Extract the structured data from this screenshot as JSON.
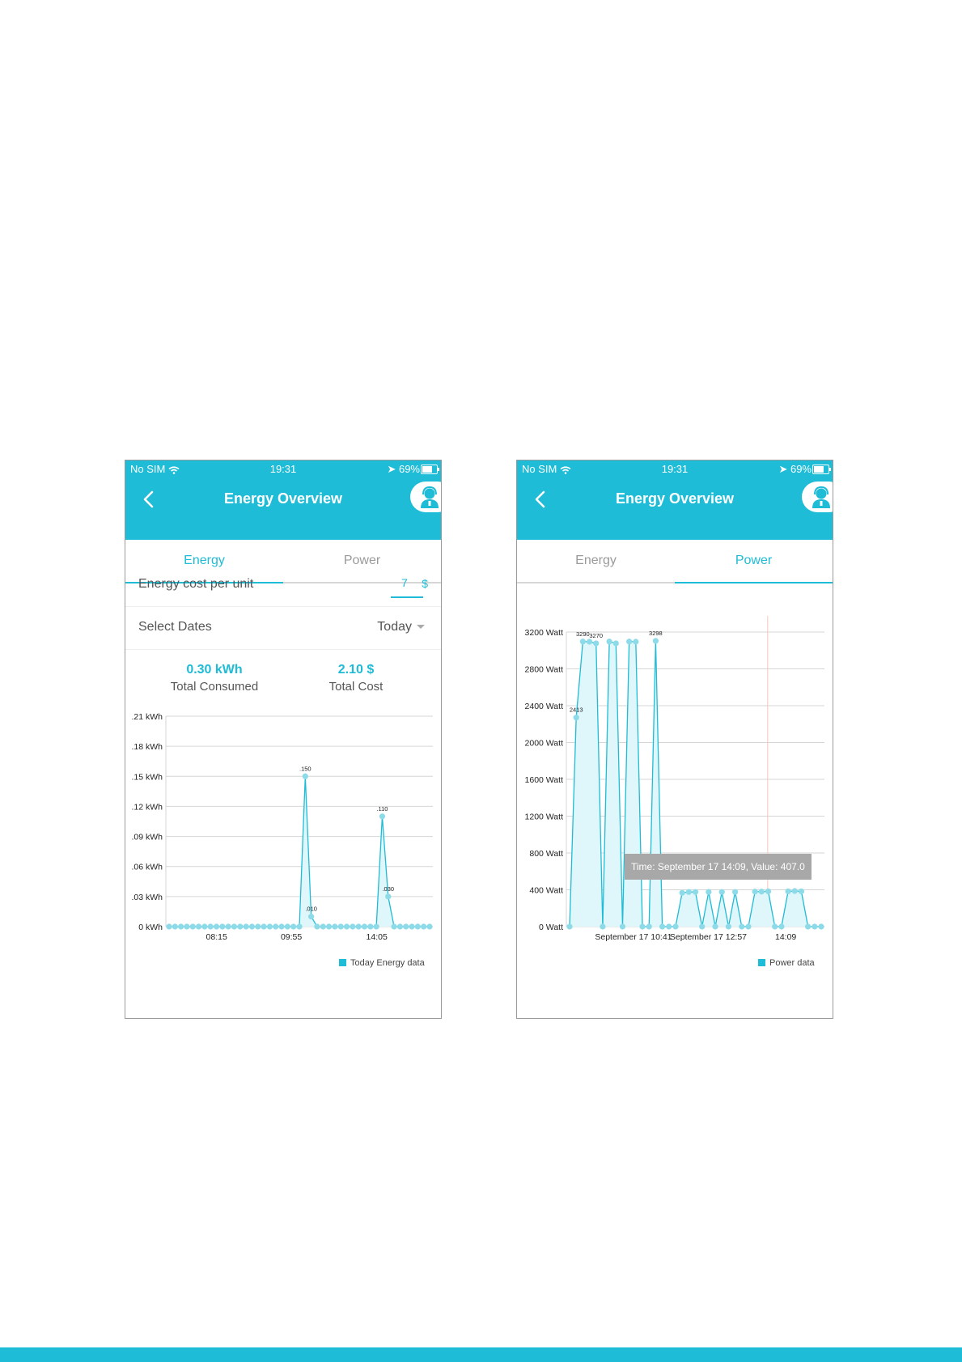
{
  "colors": {
    "accent": "#1ebcd6",
    "fill": "#dff6fb",
    "grid": "#d6d6d6",
    "tooltip_bg": "#a8a8a8"
  },
  "left": {
    "status": {
      "carrier": "No SIM",
      "time": "19:31",
      "battery": "69%"
    },
    "header": {
      "title": "Energy Overview",
      "back_icon": "chevron-left-icon",
      "support_icon": "support-agent-icon"
    },
    "tabs": [
      {
        "label": "Energy",
        "active": true
      },
      {
        "label": "Power",
        "active": false
      }
    ],
    "cost_row": {
      "label": "Energy cost per unit",
      "value": "7",
      "currency": "$"
    },
    "dates_row": {
      "label": "Select Dates",
      "value": "Today"
    },
    "summary": {
      "consumed_value": "0.30 kWh",
      "consumed_label": "Total Consumed",
      "cost_value": "2.10 $",
      "cost_label": "Total Cost"
    },
    "legend": "Today Energy data"
  },
  "right": {
    "status": {
      "carrier": "No SIM",
      "time": "19:31",
      "battery": "69%"
    },
    "header": {
      "title": "Energy Overview",
      "back_icon": "chevron-left-icon",
      "support_icon": "support-agent-icon"
    },
    "tabs": [
      {
        "label": "Energy",
        "active": false
      },
      {
        "label": "Power",
        "active": true
      }
    ],
    "tooltip": "Time: September 17 14:09, Value: 407.0",
    "legend": "Power data"
  },
  "chart_data": [
    {
      "type": "area",
      "ylabel": "",
      "ylim": [
        0,
        0.21
      ],
      "y_ticks": [
        ".21 kWh",
        ".18 kWh",
        ".15 kWh",
        ".12 kWh",
        ".09 kWh",
        ".06 kWh",
        ".03 kWh",
        "0 kWh"
      ],
      "x_tick_labels": [
        "08:15",
        "09:55",
        "14:05"
      ],
      "series": [
        {
          "name": "Today Energy data",
          "values": [
            0,
            0,
            0,
            0,
            0,
            0,
            0,
            0,
            0,
            0,
            0,
            0,
            0,
            0,
            0,
            0,
            0,
            0,
            0,
            0,
            0,
            0,
            0,
            0.15,
            0.01,
            0,
            0,
            0,
            0,
            0,
            0,
            0,
            0,
            0,
            0,
            0,
            0.11,
            0.03,
            0,
            0,
            0,
            0,
            0,
            0,
            0
          ],
          "labels": {
            "23": ".150",
            "24": ".010",
            "36": ".110",
            "37": ".030"
          }
        }
      ]
    },
    {
      "type": "area",
      "ylim": [
        0,
        3400
      ],
      "y_ticks": [
        "3200 Watt",
        "2800 Watt",
        "2400 Watt",
        "2000 Watt",
        "1600 Watt",
        "1200 Watt",
        "800 Watt",
        "400 Watt",
        "0 Watt"
      ],
      "x_tick_labels": [
        "September 17 10:41",
        "September 17 12:57",
        "14:09"
      ],
      "series": [
        {
          "name": "Power data",
          "values": [
            0,
            2413,
            3290,
            3288,
            3270,
            0,
            3290,
            3270,
            0,
            3290,
            3288,
            0,
            0,
            3298,
            0,
            0,
            0,
            390,
            400,
            400,
            0,
            401,
            0,
            400,
            0,
            400,
            0,
            0,
            404,
            404,
            407,
            0,
            0,
            407,
            411,
            407,
            0,
            0,
            0
          ],
          "labels": {
            "1": "2413",
            "2": "3290",
            "4": "3270",
            "13": "3298",
            "1c": "0"
          }
        }
      ]
    }
  ]
}
